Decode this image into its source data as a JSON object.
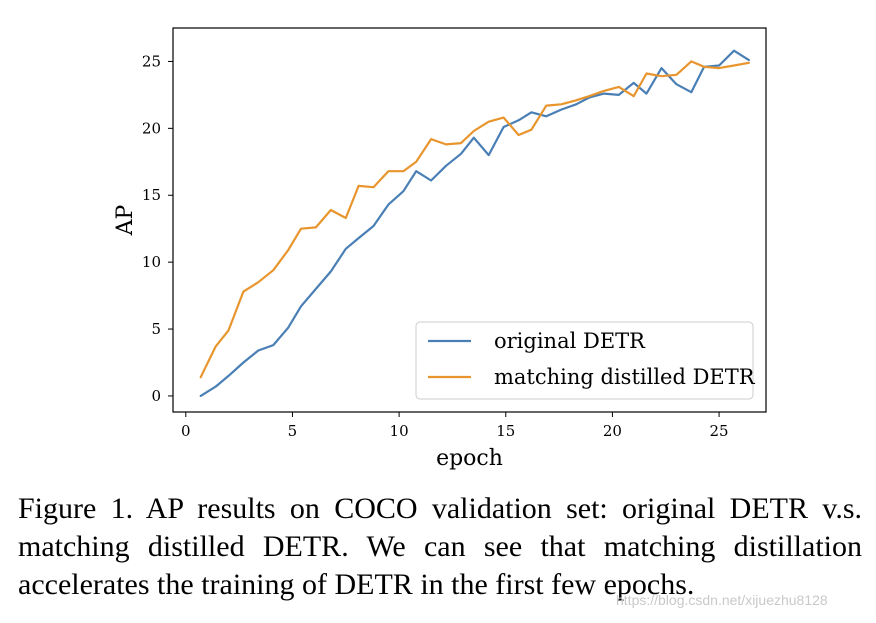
{
  "chart_data": {
    "type": "line",
    "xlabel": "epoch",
    "ylabel": "AP",
    "xlim": [
      -0.6,
      27.2
    ],
    "ylim": [
      -1.2,
      27.5
    ],
    "xticks": [
      0,
      5,
      10,
      15,
      20,
      25
    ],
    "yticks": [
      0,
      5,
      10,
      15,
      20,
      25
    ],
    "grid": false,
    "legend_position": "lower-right",
    "series": [
      {
        "name": "original DETR",
        "color": "#4a7fb5",
        "x": [
          0.7,
          1.4,
          2.0,
          2.7,
          3.4,
          4.1,
          4.8,
          5.4,
          6.1,
          6.8,
          7.5,
          8.1,
          8.8,
          9.5,
          10.2,
          10.8,
          11.5,
          12.2,
          12.9,
          13.5,
          14.2,
          14.9,
          15.6,
          16.2,
          16.9,
          17.6,
          18.3,
          18.9,
          19.6,
          20.3,
          21.0,
          21.6,
          22.3,
          23.0,
          23.7,
          24.3,
          25.0,
          25.7,
          26.4
        ],
        "y": [
          0.0,
          0.7,
          1.5,
          2.5,
          3.4,
          3.8,
          5.1,
          6.7,
          8.0,
          9.3,
          11.0,
          11.8,
          12.7,
          14.3,
          15.3,
          16.8,
          16.1,
          17.2,
          18.1,
          19.3,
          18.0,
          20.1,
          20.6,
          21.2,
          20.9,
          21.4,
          21.8,
          22.3,
          22.6,
          22.5,
          23.4,
          22.6,
          24.5,
          23.3,
          22.7,
          24.6,
          24.7,
          25.8,
          25.1
        ]
      },
      {
        "name": "matching distilled DETR",
        "color": "#e8952e",
        "x": [
          0.7,
          1.4,
          2.0,
          2.7,
          3.4,
          4.1,
          4.8,
          5.4,
          6.1,
          6.8,
          7.5,
          8.1,
          8.8,
          9.5,
          10.2,
          10.8,
          11.5,
          12.2,
          12.9,
          13.5,
          14.2,
          14.9,
          15.6,
          16.2,
          16.9,
          17.6,
          18.3,
          18.9,
          19.6,
          20.3,
          21.0,
          21.6,
          22.3,
          23.0,
          23.7,
          24.3,
          25.0,
          25.7,
          26.4
        ],
        "y": [
          1.4,
          3.7,
          4.9,
          7.8,
          8.5,
          9.4,
          10.9,
          12.5,
          12.6,
          13.9,
          13.3,
          15.7,
          15.6,
          16.8,
          16.8,
          17.5,
          19.2,
          18.8,
          18.9,
          19.8,
          20.5,
          20.8,
          19.5,
          19.9,
          21.7,
          21.8,
          22.1,
          22.4,
          22.8,
          23.1,
          22.4,
          24.1,
          23.9,
          24.0,
          25.0,
          24.6,
          24.5,
          24.7,
          24.9
        ]
      }
    ]
  },
  "caption": "Figure 1. AP results on COCO validation set: original DETR v.s. matching distilled DETR. We can see that matching distillation accelerates the training of DETR in the first few epochs.",
  "watermark": "https://blog.csdn.net/xijuezhu8128"
}
